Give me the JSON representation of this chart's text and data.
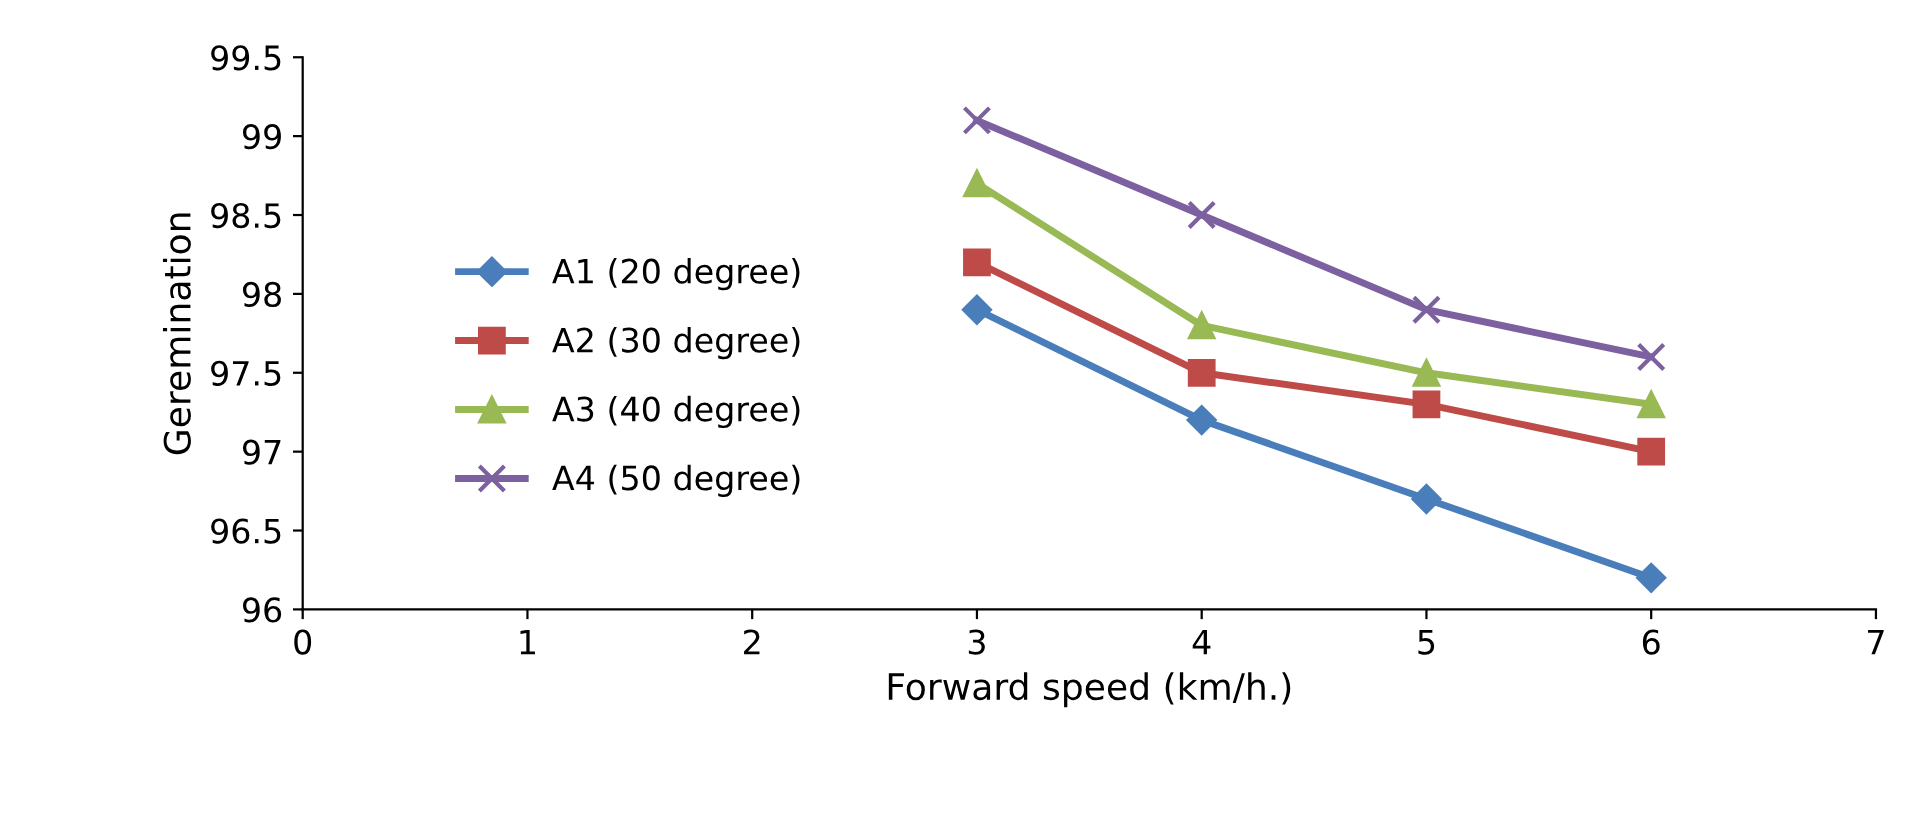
{
  "chart_data": {
    "type": "line",
    "xlabel": "Forward speed (km/h.)",
    "ylabel": "Geremination",
    "x": [
      3,
      4,
      5,
      6
    ],
    "series": [
      {
        "name": "A1 (20 degree)",
        "color": "#4a7ebb",
        "marker": "diamond",
        "values": [
          97.9,
          97.2,
          96.7,
          96.2
        ]
      },
      {
        "name": "A2 (30 degree)",
        "color": "#be4b48",
        "marker": "square",
        "values": [
          98.2,
          97.5,
          97.3,
          97.0
        ]
      },
      {
        "name": "A3 (40 degree)",
        "color": "#98b954",
        "marker": "triangle",
        "values": [
          98.7,
          97.8,
          97.5,
          97.3
        ]
      },
      {
        "name": "A4 (50 degree)",
        "color": "#7d60a0",
        "marker": "cross",
        "values": [
          99.1,
          98.5,
          97.9,
          97.6
        ]
      }
    ],
    "xlim": [
      0,
      7
    ],
    "xticks": [
      0,
      1,
      2,
      3,
      4,
      5,
      6,
      7
    ],
    "ylim": [
      96,
      99.5
    ],
    "yticks": [
      96,
      96.5,
      97,
      97.5,
      98,
      98.5,
      99,
      99.5
    ],
    "grid": false,
    "legend": "left",
    "line_style": "solid"
  }
}
